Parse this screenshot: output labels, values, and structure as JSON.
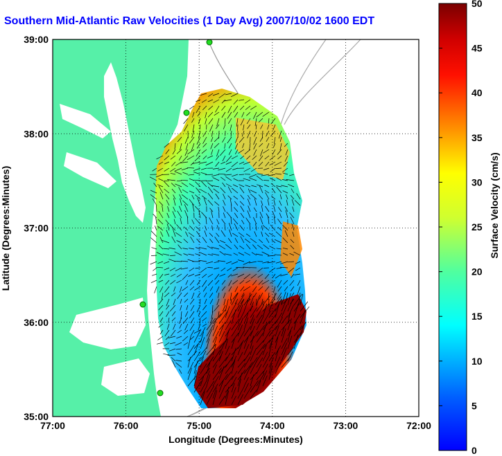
{
  "title": "Southern Mid-Atlantic Raw Velocities (1 Day Avg) 2007/10/02 1600 EDT",
  "map": {
    "x_ticks": [
      "77:00",
      "76:00",
      "75:00",
      "74:00",
      "73:00",
      "72:00"
    ],
    "y_ticks": [
      "39:00",
      "38:00",
      "37:00",
      "36:00",
      "35:00"
    ],
    "x_label": "Longitude (Degrees:Minutes)",
    "y_label": "Latitude (Degrees:Minutes)",
    "lon_range": [
      -77,
      -72
    ],
    "lat_range": [
      35,
      39
    ],
    "grid": true
  },
  "colorbar": {
    "label": "Surface Velocity (cm/s)",
    "ticks": [
      "50",
      "45",
      "40",
      "35",
      "30",
      "25",
      "20",
      "15",
      "10",
      "5",
      "0"
    ],
    "min": 0,
    "max": 50
  },
  "colors": {
    "land": "#56f0a8",
    "title": "#0000ff",
    "station": "#22dd22"
  }
}
